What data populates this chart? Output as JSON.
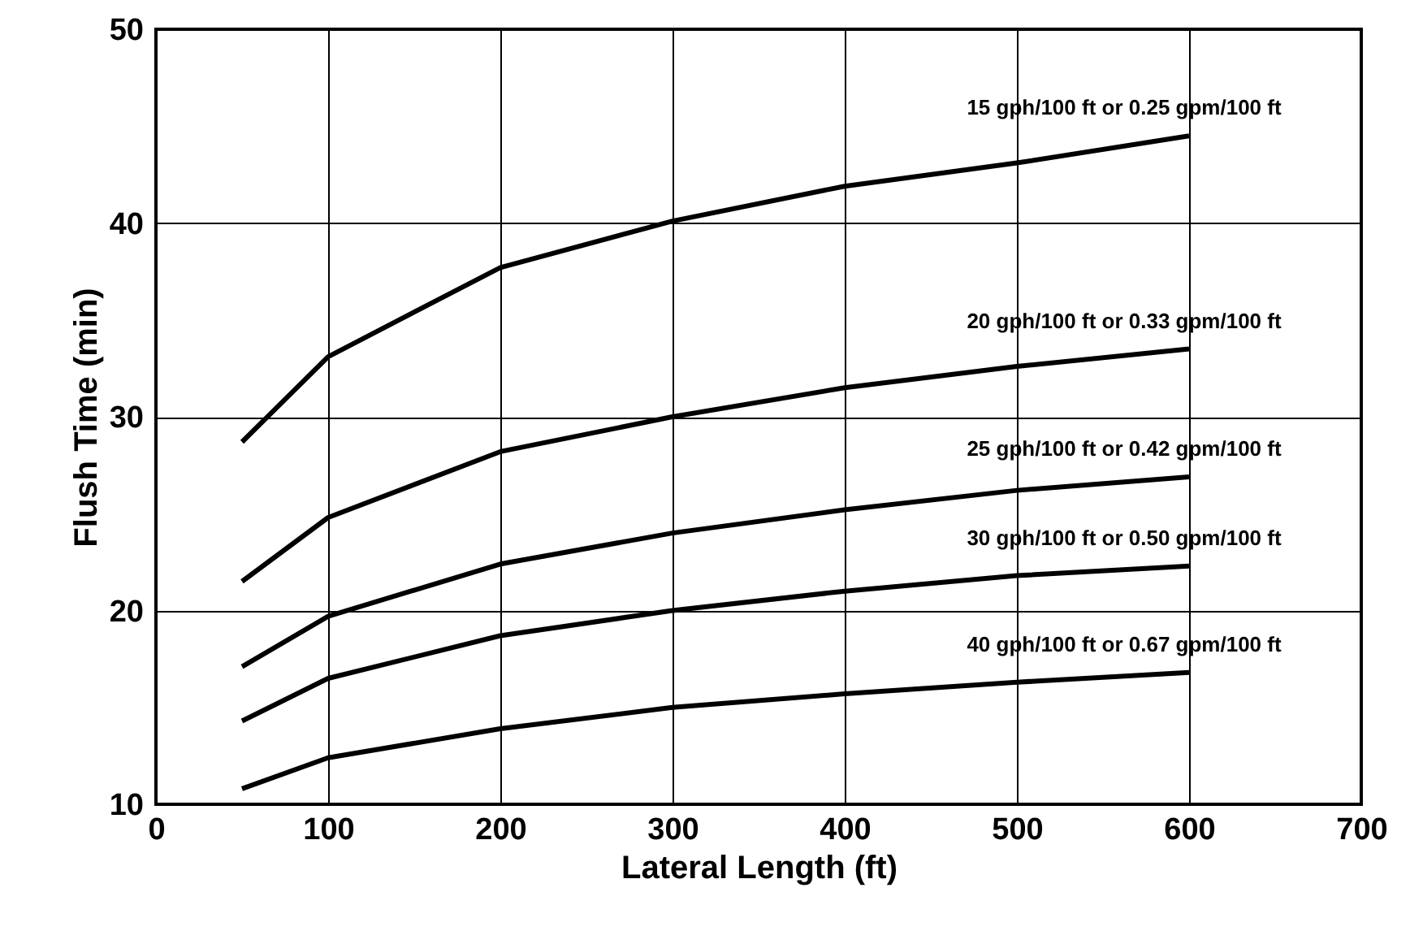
{
  "chart_data": {
    "type": "line",
    "xlabel": "Lateral Length (ft)",
    "ylabel": "Flush Time (min)",
    "x": [
      50,
      100,
      200,
      300,
      400,
      500,
      600
    ],
    "series": [
      {
        "name": "15 gph/100 ft or 0.25 gpm/100 ft",
        "color": "#000000",
        "values": [
          28.7,
          33.1,
          37.7,
          40.1,
          41.9,
          43.1,
          44.5
        ]
      },
      {
        "name": "20 gph/100 ft or 0.33 gpm/100 ft",
        "color": "#000000",
        "values": [
          21.5,
          24.8,
          28.2,
          30.0,
          31.5,
          32.6,
          33.5
        ]
      },
      {
        "name": "25 gph/100 ft or 0.42 gpm/100 ft",
        "color": "#000000",
        "values": [
          17.1,
          19.7,
          22.4,
          24.0,
          25.2,
          26.2,
          26.9
        ]
      },
      {
        "name": "30 gph/100 ft or 0.50 gpm/100 ft",
        "color": "#000000",
        "values": [
          14.3,
          16.5,
          18.7,
          20.0,
          21.0,
          21.8,
          22.3
        ]
      },
      {
        "name": "40 gph/100 ft or 0.67 gpm/100 ft",
        "color": "#000000",
        "values": [
          10.8,
          12.4,
          13.9,
          15.0,
          15.7,
          16.3,
          16.8
        ]
      }
    ],
    "xlim": [
      0,
      700
    ],
    "xticks": [
      0,
      100,
      200,
      300,
      400,
      500,
      600,
      700
    ],
    "ylim": [
      10,
      50
    ],
    "yticks": [
      10,
      20,
      30,
      40,
      50
    ],
    "grid": true,
    "legend": false,
    "marker": "none",
    "line_style": "solid"
  }
}
